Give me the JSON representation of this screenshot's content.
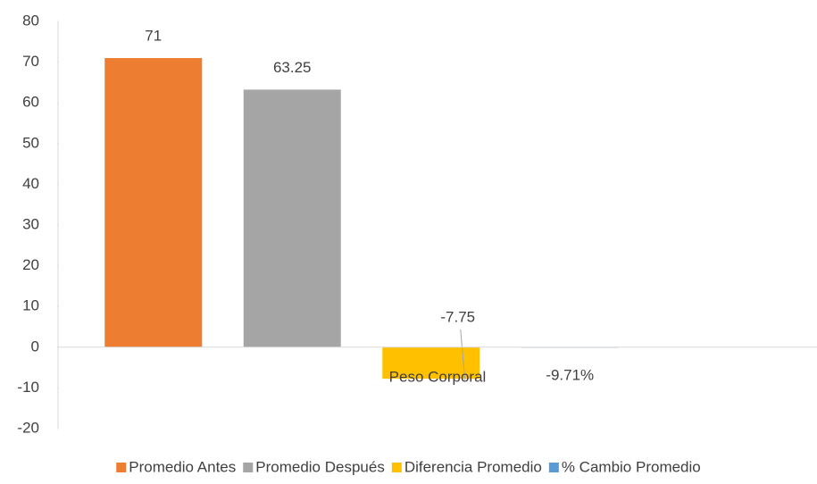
{
  "chart_data": {
    "type": "bar",
    "categories": [
      "Peso Corporal"
    ],
    "series": [
      {
        "name": "Promedio Antes",
        "color": "#ed7d31",
        "values": [
          71
        ]
      },
      {
        "name": "Promedio Después",
        "color": "#a5a5a5",
        "values": [
          63.25
        ]
      },
      {
        "name": "Diferencia Promedio",
        "color": "#ffc000",
        "values": [
          -7.75
        ]
      },
      {
        "name": "% Cambio Promedio",
        "color": "#5b9bd5",
        "values": [
          -0.0971
        ],
        "value_labels": [
          "-9.71%"
        ]
      }
    ],
    "ylim": [
      -20,
      80
    ],
    "yticks": [
      -20,
      -10,
      0,
      10,
      20,
      30,
      40,
      50,
      60,
      70,
      80
    ],
    "grid": false,
    "legend": "bottom"
  }
}
